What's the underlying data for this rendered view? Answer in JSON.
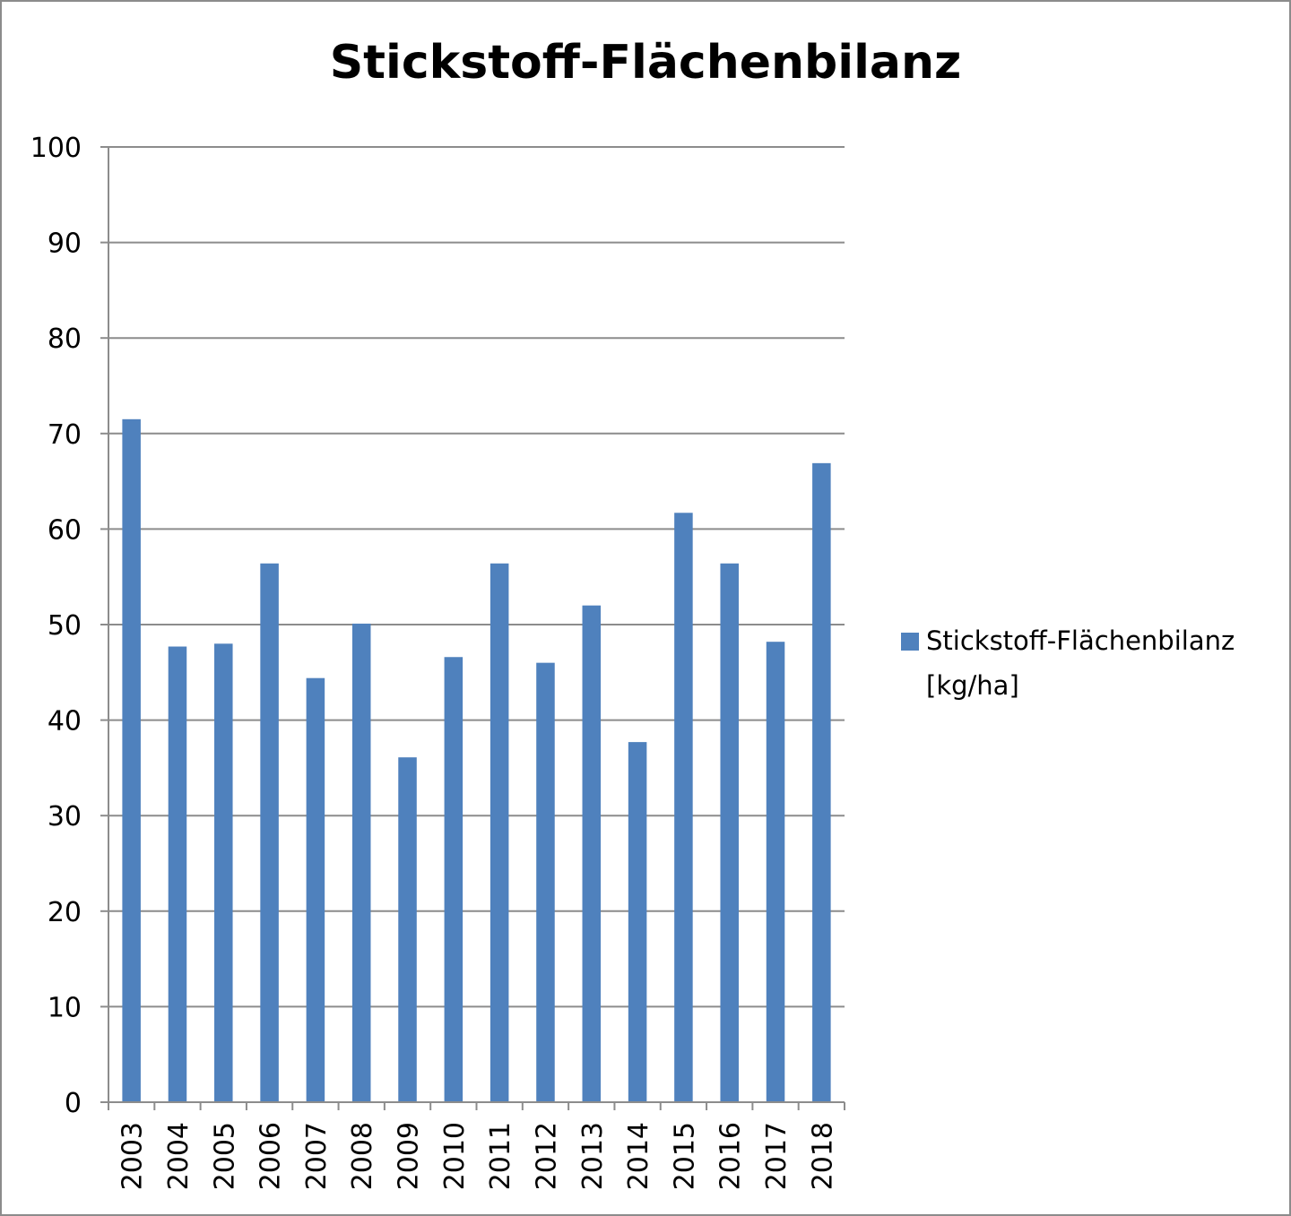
{
  "chart_data": {
    "type": "bar",
    "title": "Stickstoff-Flächenbilanz",
    "xlabel": "",
    "ylabel": "",
    "categories": [
      "2003",
      "2004",
      "2005",
      "2006",
      "2007",
      "2008",
      "2009",
      "2010",
      "2011",
      "2012",
      "2013",
      "2014",
      "2015",
      "2016",
      "2017",
      "2018"
    ],
    "series": [
      {
        "name": "Stickstoff-Flächenbilanz [kg/ha]",
        "values": [
          71.5,
          47.7,
          48,
          56.4,
          44.4,
          50.1,
          36.1,
          46.6,
          56.4,
          46,
          52,
          37.7,
          61.7,
          56.4,
          48.2,
          66.9
        ],
        "color": "#4f81bd"
      }
    ],
    "ylim": [
      0,
      100
    ],
    "yticks": [
      "0",
      "10",
      "20",
      "30",
      "40",
      "50",
      "60",
      "70",
      "80",
      "90",
      "100"
    ],
    "grid": true,
    "legend_position": "right"
  }
}
